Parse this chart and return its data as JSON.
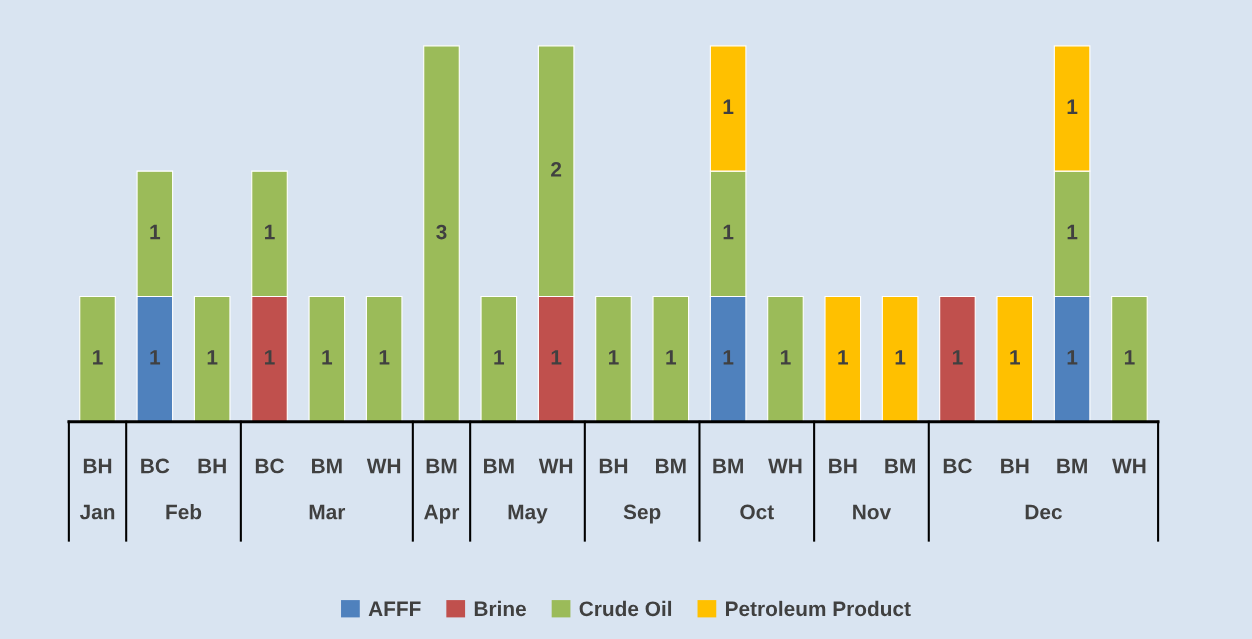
{
  "chart_data": {
    "type": "bar",
    "stacked": true,
    "data_labels": true,
    "legend": "bottom",
    "categories": [
      [
        "Jan",
        "BH"
      ],
      [
        "Feb",
        "BC"
      ],
      [
        null,
        "BH"
      ],
      [
        "Mar",
        "BC"
      ],
      [
        null,
        "BM"
      ],
      [
        null,
        "WH"
      ],
      [
        "Apr",
        "BM"
      ],
      [
        "May",
        "BM"
      ],
      [
        null,
        "WH"
      ],
      [
        "Sep",
        "BH"
      ],
      [
        null,
        "BM"
      ],
      [
        "Oct",
        "BM"
      ],
      [
        null,
        "WH"
      ],
      [
        "Nov",
        "BH"
      ],
      [
        null,
        "BM"
      ],
      [
        "Dec",
        "BC"
      ],
      [
        null,
        "BH"
      ],
      [
        null,
        "BM"
      ],
      [
        null,
        "WH"
      ]
    ],
    "series": [
      {
        "name": "AFFF",
        "color": "#4f81bd",
        "values": [
          null,
          1,
          null,
          null,
          null,
          null,
          null,
          null,
          null,
          null,
          null,
          1,
          null,
          null,
          null,
          null,
          null,
          1,
          null
        ]
      },
      {
        "name": "Brine",
        "color": "#c0504d",
        "values": [
          null,
          null,
          null,
          1,
          null,
          null,
          null,
          null,
          1,
          null,
          null,
          null,
          null,
          null,
          null,
          1,
          null,
          null,
          null
        ]
      },
      {
        "name": "Crude Oil",
        "color": "#9bbb59",
        "values": [
          1,
          1,
          1,
          1,
          1,
          1,
          3,
          1,
          2,
          1,
          1,
          1,
          1,
          null,
          null,
          null,
          null,
          1,
          1
        ]
      },
      {
        "name": "Petroleum Product",
        "color": "#ffc000",
        "values": [
          null,
          null,
          null,
          null,
          null,
          null,
          null,
          null,
          null,
          null,
          null,
          1,
          null,
          1,
          1,
          null,
          1,
          1,
          null
        ]
      }
    ]
  }
}
